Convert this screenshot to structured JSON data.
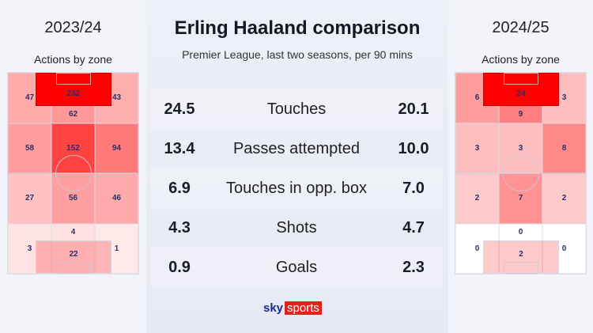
{
  "title": "Erling Haaland comparison",
  "subtitle": "Premier League, last two seasons, per 90 mins",
  "accent_color": "#ff0000",
  "panels": [
    {
      "season": "2023/24",
      "zone_label": "Actions by zone",
      "box_top": "232",
      "grid": [
        [
          "47",
          "62",
          "43"
        ],
        [
          "58",
          "152",
          "94"
        ],
        [
          "27",
          "56",
          "46"
        ],
        [
          "3",
          "4",
          "1"
        ]
      ],
      "box_bottom": "22"
    },
    {
      "season": "2024/25",
      "zone_label": "Actions by zone",
      "box_top": "24",
      "grid": [
        [
          "6",
          "9",
          "3"
        ],
        [
          "3",
          "3",
          "8"
        ],
        [
          "2",
          "7",
          "2"
        ],
        [
          "0",
          "0",
          "0"
        ]
      ],
      "box_bottom": "2"
    }
  ],
  "stats": [
    {
      "left": "24.5",
      "label": "Touches",
      "right": "20.1"
    },
    {
      "left": "13.4",
      "label": "Passes attempted",
      "right": "10.0"
    },
    {
      "left": "6.9",
      "label": "Touches in opp. box",
      "right": "7.0"
    },
    {
      "left": "4.3",
      "label": "Shots",
      "right": "4.7"
    },
    {
      "left": "0.9",
      "label": "Goals",
      "right": "2.3"
    }
  ],
  "logo": {
    "sky": "sky",
    "sports": "sports"
  }
}
